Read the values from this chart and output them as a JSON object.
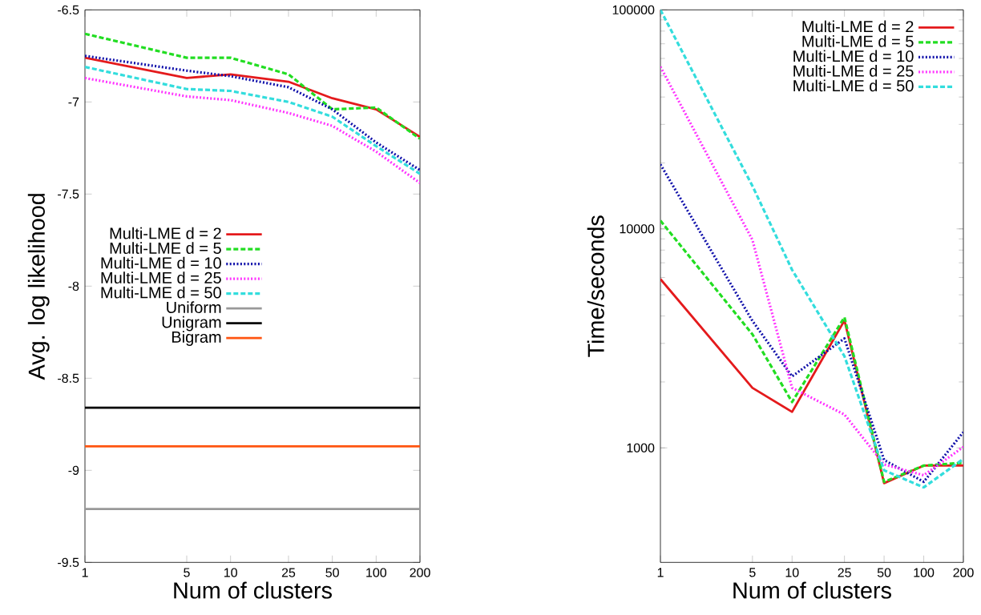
{
  "chart_data": [
    {
      "type": "line",
      "xlabel": "Num of clusters",
      "ylabel": "Avg. log likelihood",
      "log": "x",
      "legend": "left",
      "x": [
        1,
        5,
        10,
        25,
        50,
        100,
        200
      ],
      "xlim": [
        1,
        200
      ],
      "xticks": [
        1,
        5,
        10,
        25,
        50,
        100,
        200
      ],
      "ylim": [
        -9.5,
        -6.5
      ],
      "yticks": [
        -9.5,
        -9,
        -8.5,
        -8,
        -7.5,
        -7,
        -6.5
      ],
      "series": [
        {
          "name": "Multi-LME d = 2",
          "color": "#e41a1c",
          "line_style": "solid",
          "values": [
            -6.76,
            -6.87,
            -6.85,
            -6.89,
            -6.98,
            -7.04,
            -7.19
          ]
        },
        {
          "name": "Multi-LME d = 5",
          "color": "#22dd22",
          "line_style": "dashed",
          "values": [
            -6.63,
            -6.76,
            -6.76,
            -6.85,
            -7.04,
            -7.03,
            -7.2
          ]
        },
        {
          "name": "Multi-LME d = 10",
          "color": "#1010aa",
          "line_style": "dotted",
          "values": [
            -6.75,
            -6.83,
            -6.86,
            -6.92,
            -7.04,
            -7.22,
            -7.37
          ]
        },
        {
          "name": "Multi-LME d = 25",
          "color": "#ff33ff",
          "line_style": "dotted",
          "values": [
            -6.87,
            -6.97,
            -6.99,
            -7.06,
            -7.13,
            -7.27,
            -7.44
          ]
        },
        {
          "name": "Multi-LME d = 50",
          "color": "#33dddd",
          "line_style": "dashed",
          "values": [
            -6.81,
            -6.93,
            -6.94,
            -7.0,
            -7.08,
            -7.24,
            -7.39
          ]
        },
        {
          "name": "Uniform",
          "color": "#999999",
          "line_style": "solid",
          "values": [
            -9.21,
            -9.21,
            -9.21,
            -9.21,
            -9.21,
            -9.21,
            -9.21
          ]
        },
        {
          "name": "Unigram",
          "color": "#000000",
          "line_style": "solid",
          "values": [
            -8.66,
            -8.66,
            -8.66,
            -8.66,
            -8.66,
            -8.66,
            -8.66
          ]
        },
        {
          "name": "Bigram",
          "color": "#ff5511",
          "line_style": "solid",
          "values": [
            -8.87,
            -8.87,
            -8.87,
            -8.87,
            -8.87,
            -8.87,
            -8.87
          ]
        }
      ]
    },
    {
      "type": "line",
      "xlabel": "Num of clusters",
      "ylabel": "Time/seconds",
      "log": "xy",
      "legend": "top right",
      "x": [
        1,
        5,
        10,
        25,
        50,
        100,
        200
      ],
      "xlim": [
        1,
        200
      ],
      "xticks": [
        1,
        5,
        10,
        25,
        50,
        100,
        200
      ],
      "ylim": [
        300,
        100000
      ],
      "yticks": [
        1000,
        10000,
        100000
      ],
      "series": [
        {
          "name": "Multi-LME d = 2",
          "color": "#e41a1c",
          "line_style": "solid",
          "values": [
            5900,
            1880,
            1460,
            3820,
            690,
            830,
            830
          ]
        },
        {
          "name": "Multi-LME d = 5",
          "color": "#22dd22",
          "line_style": "dashed",
          "values": [
            10900,
            3300,
            1620,
            3950,
            700,
            830,
            855
          ]
        },
        {
          "name": "Multi-LME d = 10",
          "color": "#1010aa",
          "line_style": "dotted",
          "values": [
            19700,
            3800,
            2120,
            3160,
            880,
            700,
            1180
          ]
        },
        {
          "name": "Multi-LME d = 25",
          "color": "#ff33ff",
          "line_style": "dotted",
          "values": [
            55000,
            8900,
            1880,
            1420,
            840,
            750,
            1010
          ]
        },
        {
          "name": "Multi-LME d = 50",
          "color": "#33dddd",
          "line_style": "dashed",
          "values": [
            100000,
            15700,
            6500,
            2620,
            790,
            660,
            890
          ]
        }
      ]
    }
  ]
}
